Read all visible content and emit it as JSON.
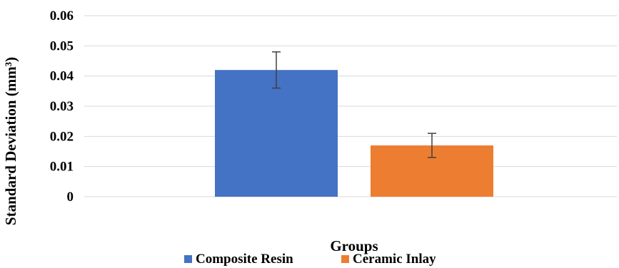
{
  "chart_data": {
    "type": "bar",
    "title": "",
    "xlabel": "Groups",
    "ylabel": "Standard Deviation (mm³)",
    "ylim": [
      0,
      0.06
    ],
    "yticks": [
      "0",
      "0.01",
      "0.02",
      "0.03",
      "0.04",
      "0.05",
      "0.06"
    ],
    "grid": true,
    "legend_position": "bottom",
    "series": [
      {
        "name": "Composite Resin",
        "value": 0.042,
        "error": [
          0.036,
          0.048
        ],
        "color": "#4472C4"
      },
      {
        "name": "Ceramic Inlay",
        "value": 0.017,
        "error": [
          0.013,
          0.021
        ],
        "color": "#ED7D31"
      }
    ]
  }
}
